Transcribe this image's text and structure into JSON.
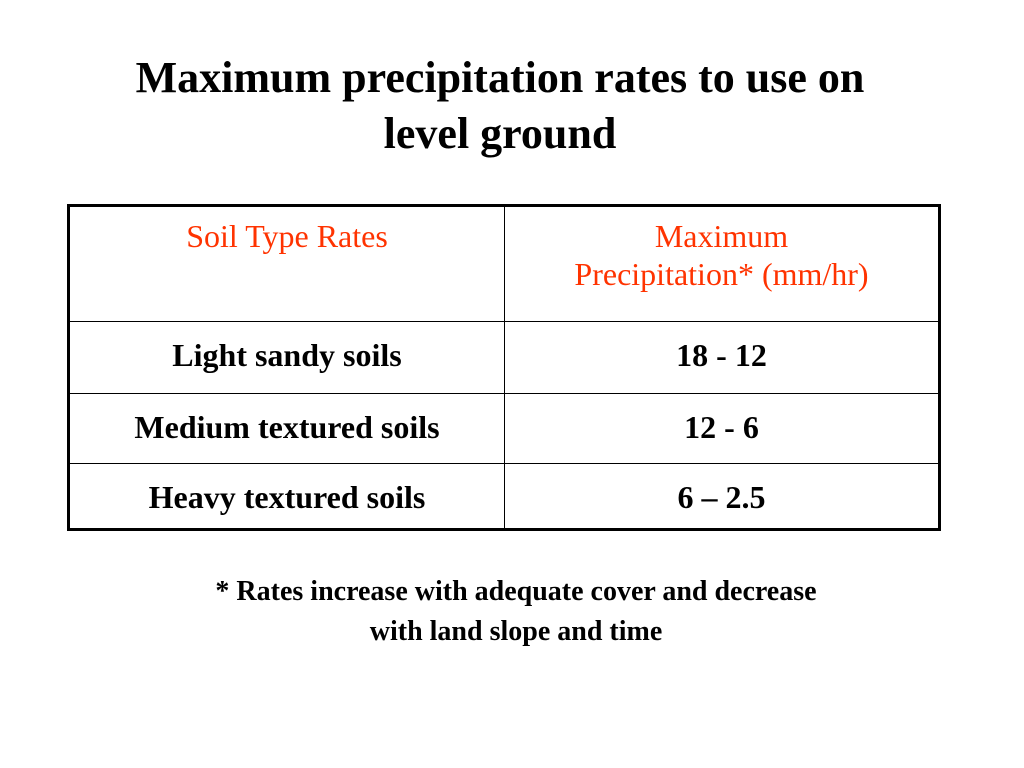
{
  "slide": {
    "title_line1": "Maximum precipitation rates to use on",
    "title_line2": "level ground"
  },
  "table": {
    "header_color": "#ff3300",
    "headers": [
      {
        "line1": "Soil Type Rates",
        "line2": ""
      },
      {
        "line1": "Maximum",
        "line2": "Precipitation* (mm/hr)"
      }
    ],
    "rows": [
      {
        "soil": "Light sandy soils",
        "rate": "18 - 12"
      },
      {
        "soil": "Medium textured soils",
        "rate": "12 - 6"
      },
      {
        "soil": "Heavy textured soils",
        "rate": "6 – 2.5"
      }
    ]
  },
  "footnote": {
    "line1": "* Rates increase with adequate cover and decrease",
    "line2": "with land slope and time"
  }
}
